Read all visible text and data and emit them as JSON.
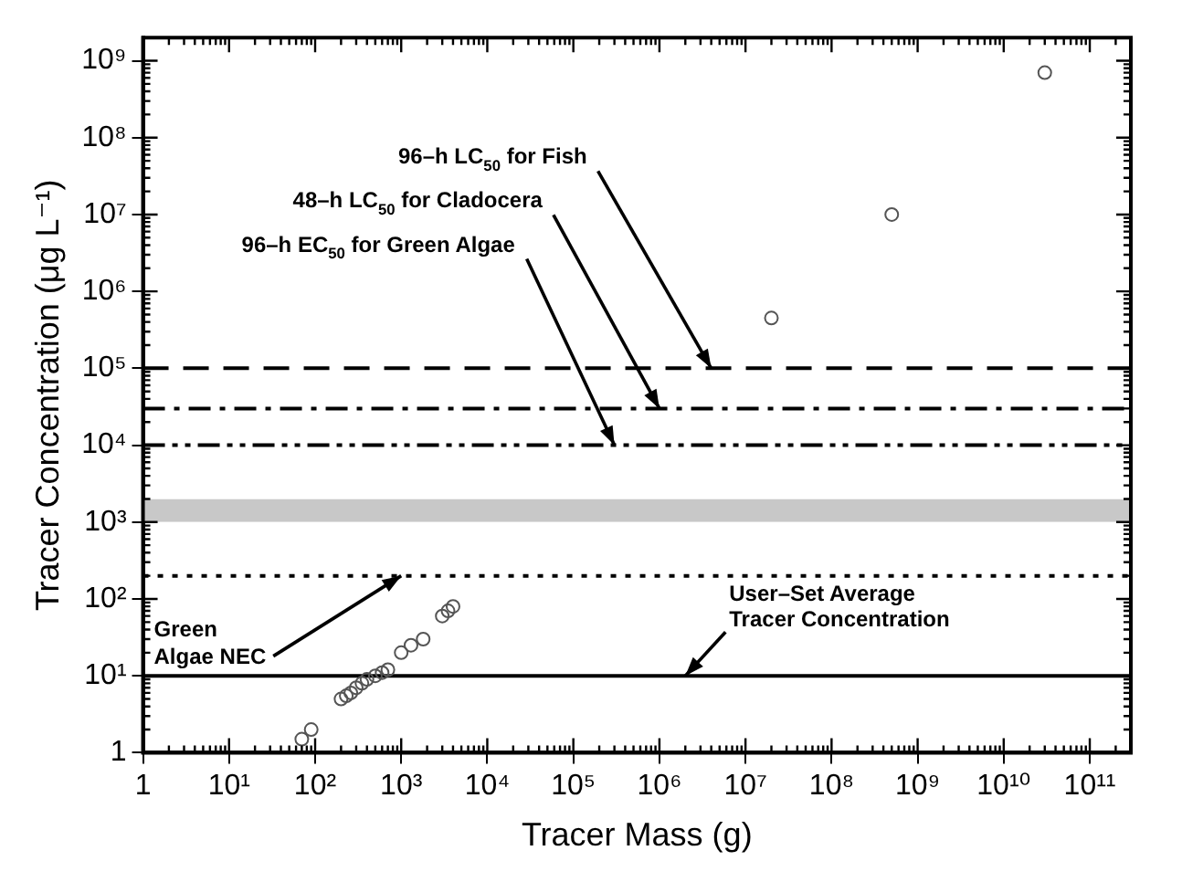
{
  "chart_data": {
    "type": "scatter",
    "xlabel": "Tracer Mass (g)",
    "ylabel": "Tracer Concentration (μg L⁻¹)",
    "log": "xy",
    "grid": false,
    "legend": false,
    "marker": "circle",
    "xlim": [
      1,
      300000000000
    ],
    "ylim": [
      1,
      2000000000
    ],
    "xticks": [
      1,
      {
        "value": 10,
        "label": "10¹"
      },
      {
        "value": 100,
        "label": "10²"
      },
      {
        "value": 1000,
        "label": "10³"
      },
      {
        "value": 10000,
        "label": "10⁴"
      },
      {
        "value": 100000,
        "label": "10⁵"
      },
      {
        "value": 1000000,
        "label": "10⁶"
      },
      {
        "value": 10000000,
        "label": "10⁷"
      },
      {
        "value": 100000000,
        "label": "10⁸"
      },
      {
        "value": 1000000000,
        "label": "10⁹"
      },
      {
        "value": 10000000000,
        "label": "10¹⁰"
      },
      {
        "value": 100000000000,
        "label": "10¹¹"
      }
    ],
    "yticks": [
      1,
      {
        "value": 10,
        "label": "10¹"
      },
      {
        "value": 100,
        "label": "10²"
      },
      {
        "value": 1000,
        "label": "10³"
      },
      {
        "value": 10000,
        "label": "10⁴"
      },
      {
        "value": 100000,
        "label": "10⁵"
      },
      {
        "value": 1000000,
        "label": "10⁶"
      },
      {
        "value": 10000000,
        "label": "10⁷"
      },
      {
        "value": 100000000,
        "label": "10⁸"
      },
      {
        "value": 1000000000,
        "label": "10⁹"
      }
    ],
    "series": [
      {
        "color": "#555555",
        "x": [
          70,
          90,
          200,
          230,
          260,
          300,
          350,
          400,
          500,
          600,
          700,
          1000,
          1300,
          1800,
          3000,
          3500,
          4000,
          20000000,
          500000000,
          30000000000
        ],
        "values": [
          1.5,
          2,
          5,
          5.5,
          6,
          7,
          8,
          9,
          10,
          11,
          12,
          20,
          25,
          30,
          60,
          70,
          80,
          450000,
          10000000,
          700000000
        ]
      }
    ],
    "ref_lines": [
      {
        "axis": "y",
        "value": 100000,
        "line_style": "dashed"
      },
      {
        "axis": "y",
        "value": 30000,
        "line_style": "dashdot"
      },
      {
        "axis": "y",
        "value": 10000,
        "line_style": "dashdotdot"
      },
      {
        "axis": "y",
        "value": 200,
        "line_style": "dotted"
      },
      {
        "axis": "y",
        "value": 10,
        "line_style": "solid"
      }
    ],
    "bands": [
      {
        "axis": "y",
        "from": 1000,
        "to": 2000,
        "color": "#c8c8c8"
      }
    ],
    "annotations": [
      {
        "text": "96–h LC$_{50}$ for Fish",
        "x": 4000000,
        "y": 100000
      },
      {
        "text": "48–h LC$_{50}$ for Cladocera",
        "x": 1000000,
        "y": 30000
      },
      {
        "text": "96–h EC$_{50}$ for Green Algae",
        "x": 300000,
        "y": 10000
      },
      {
        "text": "Green\nAlgae NEC",
        "x": 1000,
        "y": 200
      },
      {
        "text": "User–Set Average\nTracer Concentration",
        "x": 2000000,
        "y": 10
      }
    ]
  }
}
